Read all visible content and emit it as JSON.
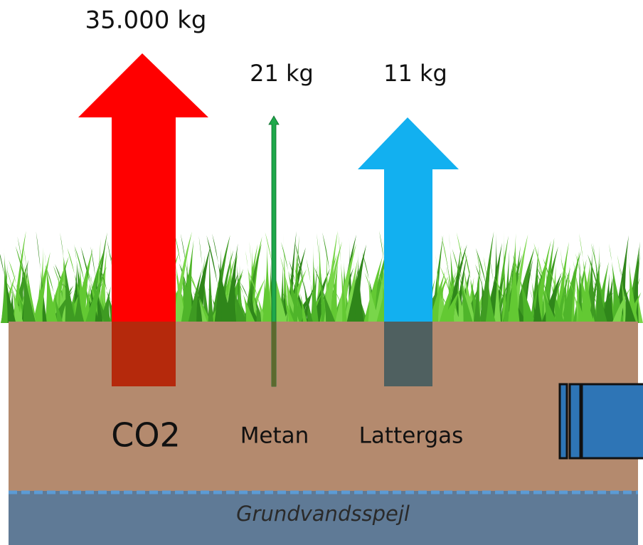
{
  "arrows": [
    {
      "label": "CO2",
      "amount": "35.000 kg"
    },
    {
      "label": "Metan",
      "amount": "21 kg"
    },
    {
      "label": "Lattergas",
      "amount": "11 kg"
    }
  ],
  "groundwater": "Grundvandsspejl"
}
